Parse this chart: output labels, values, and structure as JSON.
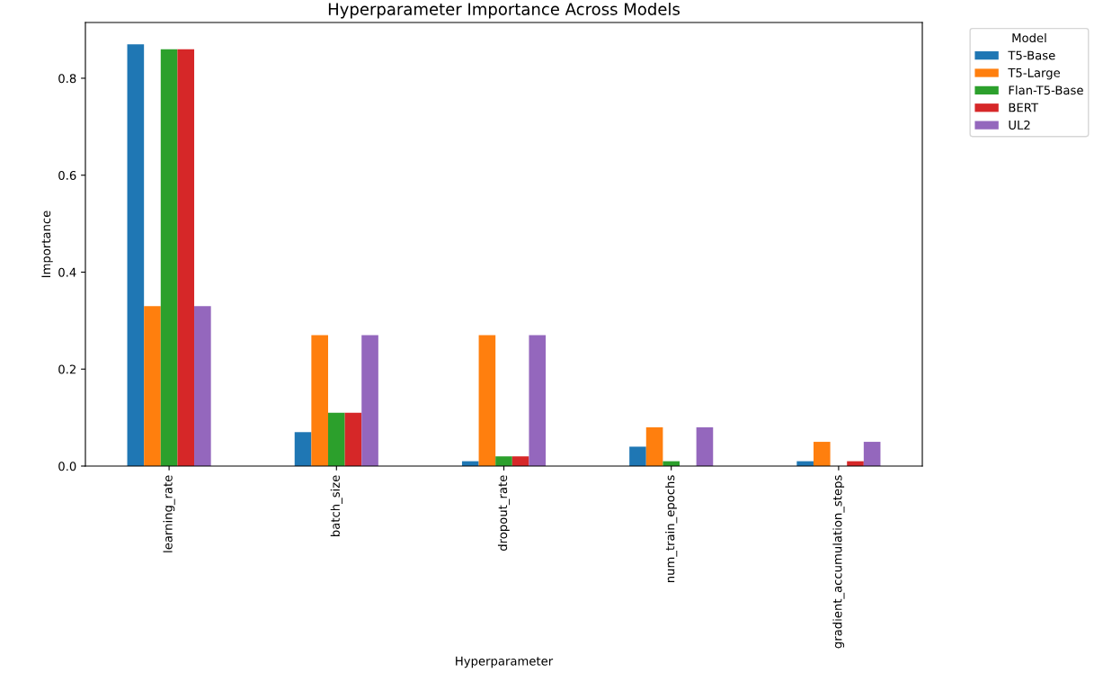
{
  "chart_data": {
    "type": "bar",
    "title": "Hyperparameter Importance Across Models",
    "xlabel": "Hyperparameter",
    "ylabel": "Importance",
    "legend_title": "Model",
    "categories": [
      "learning_rate",
      "batch_size",
      "dropout_rate",
      "num_train_epochs",
      "gradient_accumulation_steps"
    ],
    "series": [
      {
        "name": "T5-Base",
        "color": "#1f77b4",
        "values": [
          0.87,
          0.07,
          0.01,
          0.04,
          0.01
        ]
      },
      {
        "name": "T5-Large",
        "color": "#ff7f0e",
        "values": [
          0.33,
          0.27,
          0.27,
          0.08,
          0.05
        ]
      },
      {
        "name": "Flan-T5-Base",
        "color": "#2ca02c",
        "values": [
          0.86,
          0.11,
          0.02,
          0.01,
          0.0
        ]
      },
      {
        "name": "BERT",
        "color": "#d62728",
        "values": [
          0.86,
          0.11,
          0.02,
          0.0,
          0.01
        ]
      },
      {
        "name": "UL2",
        "color": "#9467bd",
        "values": [
          0.33,
          0.27,
          0.27,
          0.08,
          0.05
        ]
      }
    ],
    "ylim": [
      0,
      0.915
    ],
    "yticks": [
      {
        "value": 0,
        "label": "0.0"
      },
      0.2,
      0.4,
      0.6,
      0.8
    ],
    "grid": false,
    "legend": "top right"
  }
}
